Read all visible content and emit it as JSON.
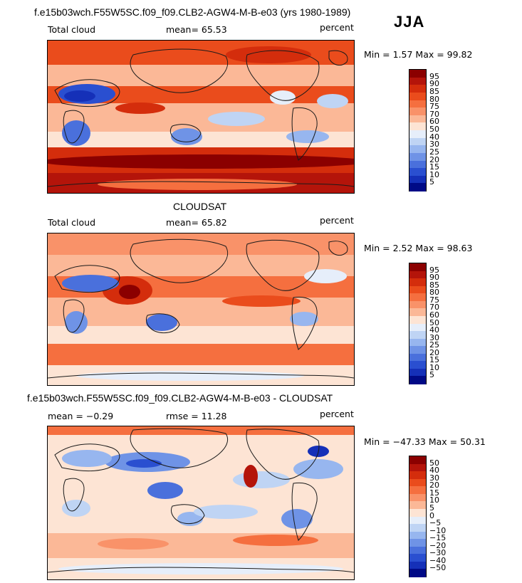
{
  "season": "JJA",
  "land_outline_color": "#1a1a1a",
  "chart_data": [
    {
      "type": "heatmap",
      "title": "f.e15b03wch.F55W5SC.f09_f09.CLB2-AGW4-M-B-e03 (yrs 1980-1989)",
      "variable_label": "Total cloud",
      "stat_label": "mean=  65.53",
      "units": "percent",
      "minmax_label": "Min =   1.57 Max =  99.82",
      "min": 1.57,
      "max": 99.82,
      "mean": 65.53,
      "colorbar": {
        "ticks": [
          "95",
          "90",
          "85",
          "80",
          "75",
          "70",
          "60",
          "50",
          "40",
          "30",
          "25",
          "20",
          "15",
          "10",
          "5"
        ],
        "colors": [
          "#8b0000",
          "#b4140a",
          "#d42d0c",
          "#ea4c1c",
          "#f56f3f",
          "#f99269",
          "#fbb897",
          "#fde4d4",
          "#e6eefa",
          "#bfd4f4",
          "#97b6ef",
          "#6f93e6",
          "#4a70dc",
          "#2a4fd0",
          "#1530b8",
          "#000a86"
        ]
      }
    },
    {
      "type": "heatmap",
      "title": "CLOUDSAT",
      "variable_label": "Total cloud",
      "stat_label": "mean=  65.82",
      "units": "percent",
      "minmax_label": "Min =   2.52 Max =  98.63",
      "min": 2.52,
      "max": 98.63,
      "mean": 65.82,
      "colorbar": {
        "ticks": [
          "95",
          "90",
          "85",
          "80",
          "75",
          "70",
          "60",
          "50",
          "40",
          "30",
          "25",
          "20",
          "15",
          "10",
          "5"
        ],
        "colors": [
          "#8b0000",
          "#b4140a",
          "#d42d0c",
          "#ea4c1c",
          "#f56f3f",
          "#f99269",
          "#fbb897",
          "#fde4d4",
          "#e6eefa",
          "#bfd4f4",
          "#97b6ef",
          "#6f93e6",
          "#4a70dc",
          "#2a4fd0",
          "#1530b8",
          "#000a86"
        ]
      }
    },
    {
      "type": "heatmap",
      "title": "f.e15b03wch.F55W5SC.f09_f09.CLB2-AGW4-M-B-e03 - CLOUDSAT",
      "variable_label": "mean =  −0.29",
      "stat_label": "rmse =  11.28",
      "units": "percent",
      "minmax_label": "Min = −47.33 Max =  50.31",
      "min": -47.33,
      "max": 50.31,
      "mean": -0.29,
      "rmse": 11.28,
      "colorbar": {
        "ticks": [
          "50",
          "40",
          "30",
          "20",
          "15",
          "10",
          "5",
          "0",
          "−5",
          "−10",
          "−15",
          "−20",
          "−30",
          "−40",
          "−50"
        ],
        "colors": [
          "#8b0000",
          "#b4140a",
          "#d42d0c",
          "#ea4c1c",
          "#f56f3f",
          "#f99269",
          "#fbb897",
          "#fde4d4",
          "#e6eefa",
          "#bfd4f4",
          "#97b6ef",
          "#6f93e6",
          "#4a70dc",
          "#2a4fd0",
          "#1530b8",
          "#000a86"
        ]
      }
    }
  ]
}
